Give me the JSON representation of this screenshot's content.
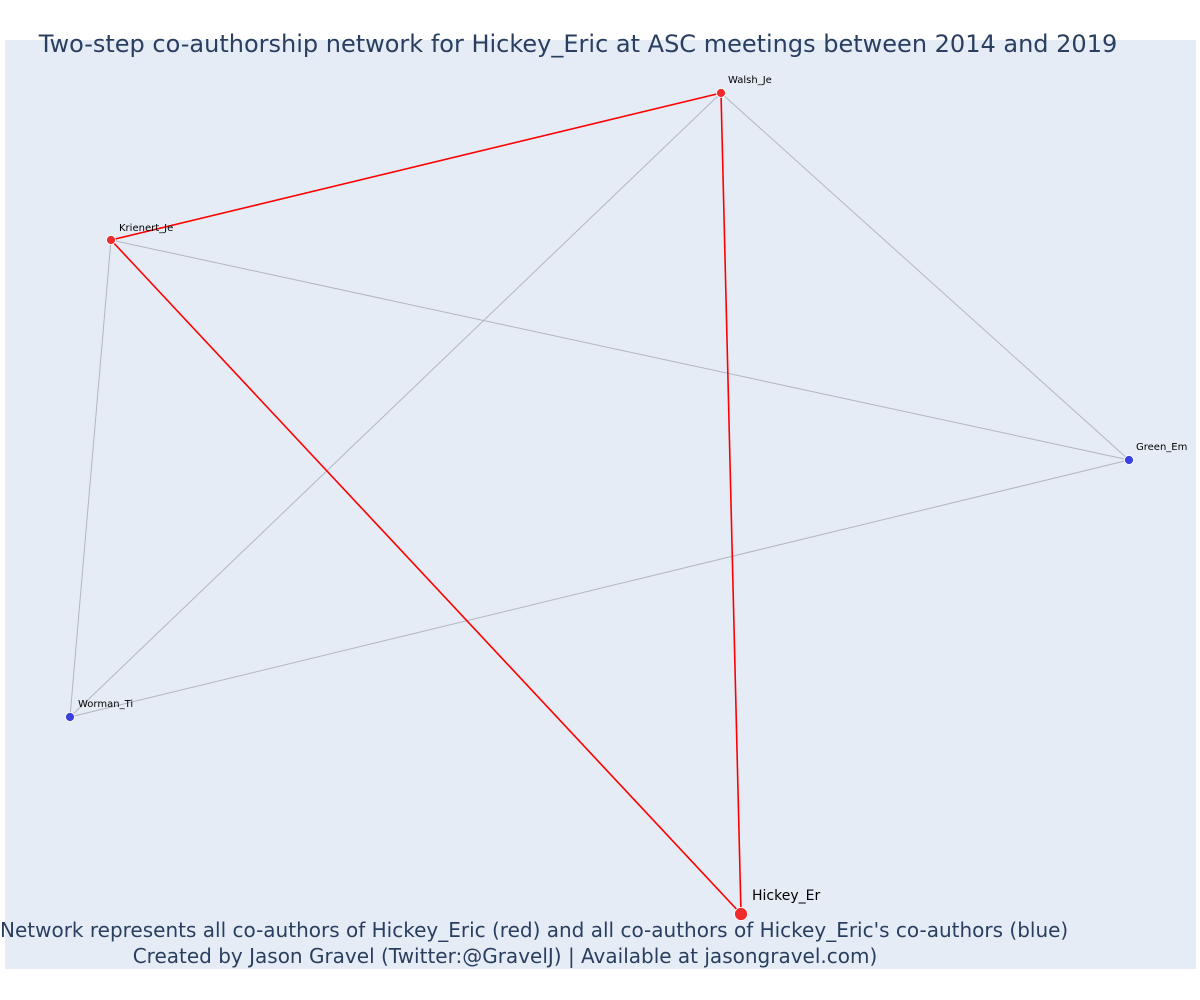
{
  "title": "Two-step co-authorship network for Hickey_Eric at ASC meetings between 2014 and 2019",
  "footer": {
    "line1": "Network represents all co-authors of Hickey_Eric (red) and all co-authors of Hickey_Eric's co-authors (blue)",
    "line2": "Created by Jason Gravel (Twitter:@GravelJ) | Available at jasongravel.com)"
  },
  "colors": {
    "background": "#e5ecf6",
    "text": "#2a3f5f",
    "coauthor": "#ef2b2b",
    "second_step": "#3b3fe0",
    "red_edge": "#ff0000",
    "gray_edge": "#b3b6c2"
  },
  "nodes": [
    {
      "id": "Walsh_Je",
      "label": "Walsh_Je",
      "group": "coauthor"
    },
    {
      "id": "Krienert_Je",
      "label": "Krienert_Je",
      "group": "coauthor"
    },
    {
      "id": "Green_Em",
      "label": "Green_Em",
      "group": "second_step"
    },
    {
      "id": "Worman_Ti",
      "label": "Worman_Ti",
      "group": "second_step"
    },
    {
      "id": "Hickey_Er",
      "label": "Hickey_Er",
      "group": "focal"
    }
  ],
  "edges": [
    {
      "source": "Walsh_Je",
      "target": "Green_Em",
      "type": "gray"
    },
    {
      "source": "Walsh_Je",
      "target": "Worman_Ti",
      "type": "gray"
    },
    {
      "source": "Krienert_Je",
      "target": "Green_Em",
      "type": "gray"
    },
    {
      "source": "Krienert_Je",
      "target": "Worman_Ti",
      "type": "gray"
    },
    {
      "source": "Green_Em",
      "target": "Worman_Ti",
      "type": "gray"
    },
    {
      "source": "Krienert_Je",
      "target": "Walsh_Je",
      "type": "red"
    },
    {
      "source": "Krienert_Je",
      "target": "Hickey_Er",
      "type": "red"
    },
    {
      "source": "Walsh_Je",
      "target": "Hickey_Er",
      "type": "red"
    }
  ]
}
